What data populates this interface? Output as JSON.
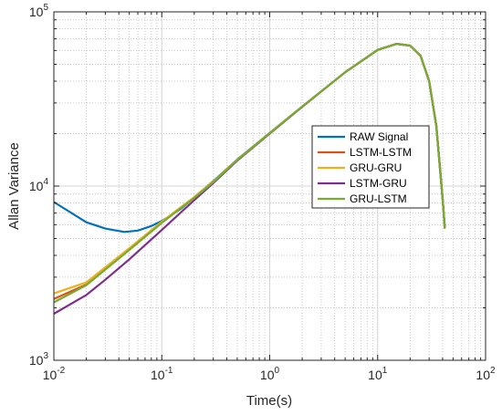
{
  "chart_data": {
    "type": "line",
    "title": "",
    "xlabel": "Time(s)",
    "ylabel": "Allan Variance",
    "x_scale": "log",
    "y_scale": "log",
    "xlim": [
      0.01,
      100
    ],
    "ylim": [
      1000,
      100000
    ],
    "grid": true,
    "legend_position": "center-right",
    "x_ticks": [
      {
        "base": "10",
        "exp": "-2",
        "value": 0.01
      },
      {
        "base": "10",
        "exp": "-1",
        "value": 0.1
      },
      {
        "base": "10",
        "exp": "0",
        "value": 1
      },
      {
        "base": "10",
        "exp": "1",
        "value": 10
      },
      {
        "base": "10",
        "exp": "2",
        "value": 100
      }
    ],
    "y_ticks": [
      {
        "base": "10",
        "exp": "3",
        "value": 1000
      },
      {
        "base": "10",
        "exp": "4",
        "value": 10000
      },
      {
        "base": "10",
        "exp": "5",
        "value": 100000
      }
    ],
    "series": [
      {
        "name": "RAW Signal",
        "color": "#0072BD",
        "x": [
          0.01,
          0.02,
          0.03,
          0.045,
          0.06,
          0.08,
          0.1,
          0.15,
          0.2,
          0.3,
          0.5,
          1,
          2,
          5,
          10,
          15,
          20,
          25,
          30,
          35,
          40,
          42
        ],
        "y": [
          8100,
          6200,
          5700,
          5450,
          5550,
          5900,
          6300,
          7400,
          8600,
          10700,
          14200,
          20200,
          28600,
          45000,
          60500,
          65500,
          64000,
          56000,
          40000,
          22000,
          8500,
          5700
        ]
      },
      {
        "name": "LSTM-LSTM",
        "color": "#D95319",
        "x": [
          0.01,
          0.02,
          0.05,
          0.1,
          0.2,
          0.3,
          0.5,
          1,
          2,
          5,
          10,
          15,
          20,
          25,
          30,
          35,
          40,
          42
        ],
        "y": [
          2250,
          2720,
          4350,
          6200,
          8600,
          10600,
          14100,
          20100,
          28600,
          45000,
          60500,
          65500,
          64000,
          56000,
          40000,
          22000,
          8500,
          5700
        ]
      },
      {
        "name": "GRU-GRU",
        "color": "#EDB120",
        "x": [
          0.01,
          0.02,
          0.05,
          0.1,
          0.2,
          0.3,
          0.5,
          1,
          2,
          5,
          10,
          15,
          20,
          25,
          30,
          35,
          40,
          42
        ],
        "y": [
          2420,
          2800,
          4400,
          6250,
          8650,
          10650,
          14150,
          20150,
          28600,
          45000,
          60500,
          65500,
          64000,
          56000,
          40000,
          22000,
          8500,
          5700
        ]
      },
      {
        "name": "LSTM-GRU",
        "color": "#7E2F8E",
        "x": [
          0.01,
          0.02,
          0.03,
          0.05,
          0.1,
          0.2,
          0.3,
          0.5,
          1,
          2,
          5,
          10,
          15,
          20,
          25,
          30,
          35,
          40,
          42
        ],
        "y": [
          1850,
          2370,
          2900,
          3800,
          5600,
          8300,
          10400,
          14000,
          20000,
          28500,
          45000,
          60500,
          65500,
          64000,
          56000,
          40000,
          22000,
          8500,
          5700
        ]
      },
      {
        "name": "GRU-LSTM",
        "color": "#77AC30",
        "x": [
          0.01,
          0.02,
          0.05,
          0.1,
          0.2,
          0.3,
          0.5,
          1,
          2,
          5,
          10,
          15,
          20,
          25,
          30,
          35,
          40,
          42
        ],
        "y": [
          2150,
          2700,
          4300,
          6150,
          8550,
          10550,
          14100,
          20100,
          28600,
          45000,
          60500,
          65500,
          64000,
          56000,
          40000,
          22000,
          8500,
          5700
        ]
      }
    ]
  }
}
